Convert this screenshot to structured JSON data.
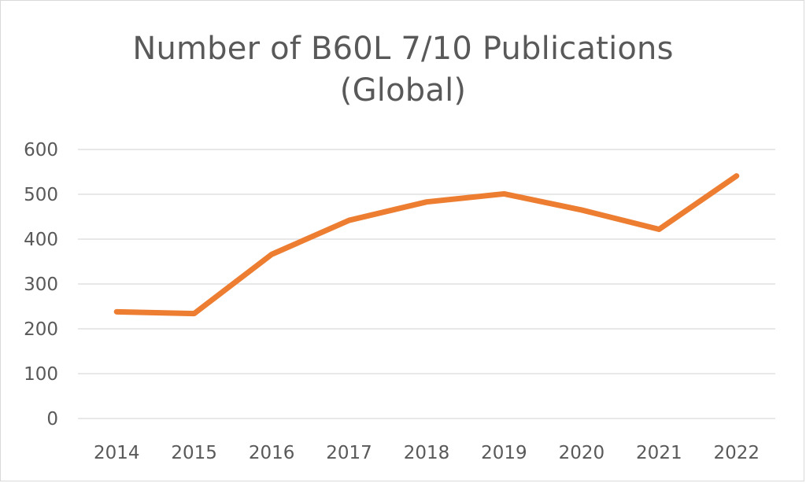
{
  "chart_data": {
    "type": "line",
    "title_lines": [
      "Number of B60L 7/10 Publications",
      "(Global)"
    ],
    "title": "Number of B60L 7/10 Publications (Global)",
    "xlabel": "",
    "ylabel": "",
    "categories": [
      "2014",
      "2015",
      "2016",
      "2017",
      "2018",
      "2019",
      "2020",
      "2021",
      "2022"
    ],
    "series": [
      {
        "values": [
          238,
          234,
          366,
          442,
          483,
          501,
          465,
          422,
          541
        ],
        "color": "#ed7d31"
      }
    ],
    "ylim": [
      0,
      600
    ],
    "y_ticks": [
      "0",
      "100",
      "200",
      "300",
      "400",
      "500",
      "600"
    ],
    "grid": true,
    "legend": "none"
  }
}
